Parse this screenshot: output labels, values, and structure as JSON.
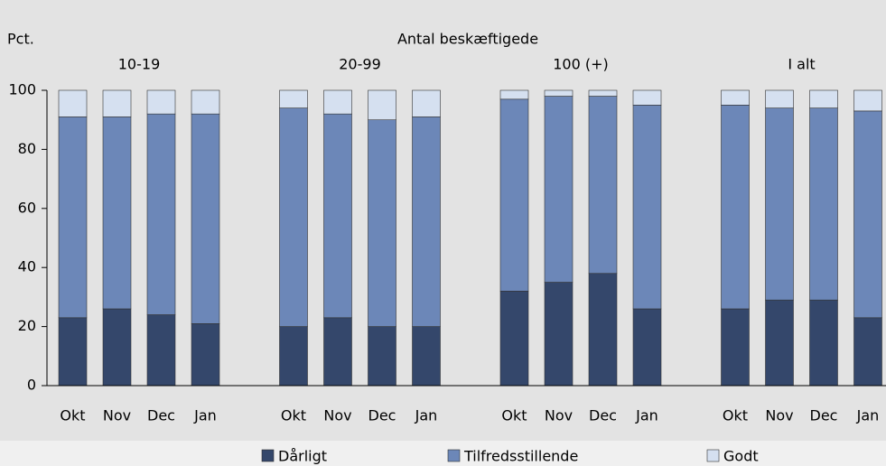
{
  "chart_data": {
    "type": "stacked_bar",
    "title": "Antal beskæftigede",
    "y_label": "Pct.",
    "groups": [
      "10-19",
      "20-99",
      "100 (+)",
      "I alt"
    ],
    "categories": [
      "Okt",
      "Nov",
      "Dec",
      "Jan",
      "Okt",
      "Nov",
      "Dec",
      "Jan",
      "Okt",
      "Nov",
      "Dec",
      "Jan",
      "Okt",
      "Nov",
      "Dec",
      "Jan"
    ],
    "series": [
      {
        "name": "Dårligt",
        "color": "#34476b",
        "values": [
          23,
          26,
          24,
          21,
          20,
          23,
          20,
          20,
          32,
          35,
          38,
          26,
          26,
          29,
          29,
          23
        ]
      },
      {
        "name": "Tilfredsstillende",
        "color": "#6c87b8",
        "values": [
          68,
          65,
          68,
          71,
          74,
          69,
          70,
          71,
          65,
          63,
          60,
          69,
          69,
          65,
          65,
          70
        ]
      },
      {
        "name": "Godt",
        "color": "#d5e0f0",
        "values": [
          9,
          9,
          8,
          8,
          6,
          8,
          10,
          9,
          3,
          2,
          2,
          5,
          5,
          6,
          6,
          7
        ]
      }
    ],
    "ylim": [
      0,
      100
    ],
    "yticks": [
      0,
      20,
      40,
      60,
      80,
      100
    ]
  }
}
